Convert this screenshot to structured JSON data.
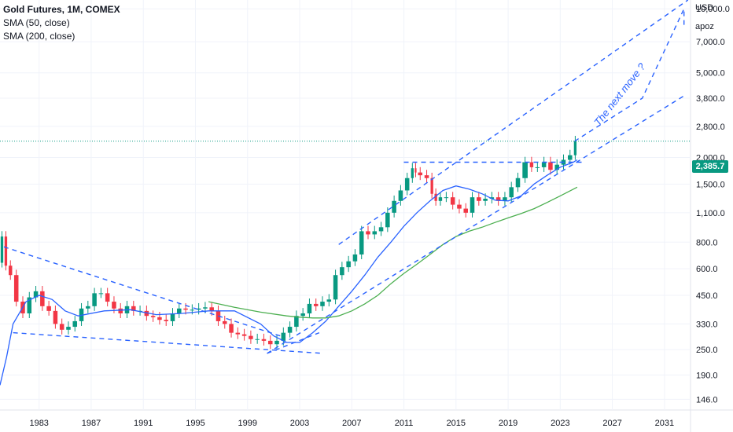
{
  "legend": {
    "title": "Gold Futures, 1M, COMEX",
    "sma50": "SMA (50, close)",
    "sma200": "SMA (200, close)"
  },
  "scale": {
    "currency": "USD",
    "mode": "apoz"
  },
  "last_price": "2,385.7",
  "annotation": "The next move ?",
  "colors": {
    "up": "#089981",
    "down": "#f23645",
    "sma50": "#2962ff",
    "sma200": "#4caf50",
    "trend": "#2962ff",
    "grid": "#f0f3fa",
    "price_line": "#089981"
  },
  "chart_data": {
    "type": "line",
    "title": "Gold Futures, 1M, COMEX",
    "y_scale": "log",
    "ylim": [
      130,
      11000
    ],
    "xlim": [
      1980.0,
      2033.0
    ],
    "y_ticks": [
      "146.0",
      "190.0",
      "250.0",
      "330.0",
      "450.0",
      "600.0",
      "800.0",
      "1,100.0",
      "1,500.0",
      "2,000.0",
      "2,800.0",
      "3,800.0",
      "5,000.0",
      "7,000.0",
      "10,000.0"
    ],
    "y_tick_values": [
      146,
      190,
      250,
      330,
      450,
      600,
      800,
      1100,
      1500,
      2000,
      2800,
      3800,
      5000,
      7000,
      10000
    ],
    "x_ticks": [
      "1983",
      "1987",
      "1991",
      "1995",
      "1999",
      "2003",
      "2007",
      "2011",
      "2015",
      "2019",
      "2023",
      "2027",
      "2031"
    ],
    "x_tick_values": [
      1983,
      1987,
      1991,
      1995,
      1999,
      2003,
      2007,
      2011,
      2015,
      2019,
      2023,
      2027,
      2031
    ],
    "series": [
      {
        "name": "Gold Futures",
        "x": [
          1980.0,
          1980.3,
          1980.6,
          1981.0,
          1981.5,
          1982.0,
          1982.5,
          1983.0,
          1983.5,
          1984.0,
          1984.5,
          1985.0,
          1985.5,
          1986.0,
          1986.5,
          1987.0,
          1987.5,
          1988.0,
          1988.5,
          1989.0,
          1989.5,
          1990.0,
          1990.5,
          1991.0,
          1991.5,
          1992.0,
          1992.5,
          1993.0,
          1993.5,
          1994.0,
          1994.5,
          1995.0,
          1995.5,
          1996.0,
          1996.5,
          1997.0,
          1997.5,
          1998.0,
          1998.5,
          1999.0,
          1999.5,
          2000.0,
          2000.5,
          2001.0,
          2001.5,
          2002.0,
          2002.5,
          2003.0,
          2003.5,
          2004.0,
          2004.5,
          2005.0,
          2005.5,
          2006.0,
          2006.5,
          2007.0,
          2007.5,
          2008.0,
          2008.5,
          2009.0,
          2009.5,
          2010.0,
          2010.5,
          2011.0,
          2011.5,
          2011.8,
          2012.0,
          2012.5,
          2013.0,
          2013.3,
          2013.6,
          2014.0,
          2014.5,
          2015.0,
          2015.5,
          2016.0,
          2016.5,
          2017.0,
          2017.5,
          2018.0,
          2018.5,
          2019.0,
          2019.5,
          2020.0,
          2020.6,
          2021.0,
          2021.5,
          2022.0,
          2022.5,
          2023.0,
          2023.5,
          2024.0,
          2024.3
        ],
        "y": [
          640,
          850,
          620,
          560,
          420,
          370,
          440,
          470,
          400,
          380,
          330,
          310,
          320,
          340,
          390,
          400,
          460,
          460,
          420,
          390,
          370,
          400,
          380,
          380,
          360,
          355,
          345,
          340,
          370,
          390,
          385,
          385,
          390,
          395,
          380,
          340,
          330,
          300,
          295,
          290,
          280,
          280,
          275,
          265,
          275,
          300,
          320,
          360,
          370,
          410,
          400,
          420,
          430,
          560,
          610,
          650,
          700,
          900,
          870,
          900,
          940,
          1100,
          1250,
          1400,
          1600,
          1780,
          1700,
          1650,
          1600,
          1350,
          1250,
          1300,
          1300,
          1200,
          1150,
          1100,
          1300,
          1250,
          1280,
          1300,
          1250,
          1300,
          1450,
          1600,
          1900,
          1800,
          1800,
          1900,
          1750,
          1850,
          1950,
          2050,
          2385
        ]
      },
      {
        "name": "SMA (50, close)",
        "x": [
          1980.0,
          1980.5,
          1981.0,
          1982.0,
          1983.0,
          1984.0,
          1985.0,
          1986.0,
          1988.0,
          1990.0,
          1992.0,
          1994.0,
          1996.0,
          1998.0,
          2000.0,
          2001.0,
          2002.0,
          2003.0,
          2004.0,
          2005.0,
          2006.0,
          2007.0,
          2008.0,
          2009.0,
          2010.0,
          2011.0,
          2012.0,
          2013.0,
          2014.0,
          2015.0,
          2016.0,
          2017.0,
          2018.0,
          2019.0,
          2020.0,
          2021.0,
          2022.0,
          2023.0,
          2024.0,
          2024.3
        ],
        "y": [
          170,
          230,
          330,
          420,
          450,
          430,
          380,
          360,
          380,
          385,
          365,
          370,
          380,
          380,
          330,
          290,
          270,
          270,
          300,
          340,
          400,
          470,
          560,
          680,
          800,
          950,
          1100,
          1250,
          1400,
          1470,
          1420,
          1350,
          1260,
          1250,
          1320,
          1500,
          1650,
          1800,
          1900,
          1950
        ]
      },
      {
        "name": "SMA (200, close)",
        "x": [
          1996.0,
          1998.0,
          2000.0,
          2002.0,
          2003.0,
          2004.0,
          2005.0,
          2006.0,
          2007.0,
          2008.0,
          2009.0,
          2010.0,
          2011.0,
          2012.0,
          2013.0,
          2014.0,
          2015.0,
          2016.0,
          2017.0,
          2018.0,
          2019.0,
          2020.0,
          2021.0,
          2022.0,
          2023.0,
          2024.3
        ],
        "y": [
          420,
          395,
          375,
          360,
          355,
          352,
          352,
          360,
          380,
          410,
          450,
          510,
          570,
          630,
          700,
          780,
          850,
          900,
          940,
          990,
          1040,
          1090,
          1150,
          1230,
          1320,
          1450
        ]
      }
    ],
    "trendlines": [
      {
        "style": "dashed",
        "points": [
          [
            1980.3,
            760
          ],
          [
            2001.5,
            290
          ]
        ]
      },
      {
        "style": "dashed",
        "points": [
          [
            1981.0,
            300
          ],
          [
            2004.8,
            240
          ]
        ]
      },
      {
        "style": "dashed",
        "points": [
          [
            2000.5,
            240
          ],
          [
            2032.5,
            3900
          ]
        ]
      },
      {
        "style": "dashed",
        "points": [
          [
            2000.5,
            240
          ],
          [
            2004.5,
            300
          ]
        ]
      },
      {
        "style": "dashed",
        "points": [
          [
            2006.0,
            780
          ],
          [
            2032.8,
            11000
          ]
        ]
      },
      {
        "style": "dashed",
        "points": [
          [
            2011.0,
            1900
          ],
          [
            2024.8,
            1900
          ]
        ]
      },
      {
        "style": "dashed",
        "points": [
          [
            2024.1,
            2385
          ],
          [
            2029.3,
            3800
          ],
          [
            2032.5,
            10000
          ],
          [
            2032.5,
            8200
          ]
        ]
      }
    ]
  }
}
